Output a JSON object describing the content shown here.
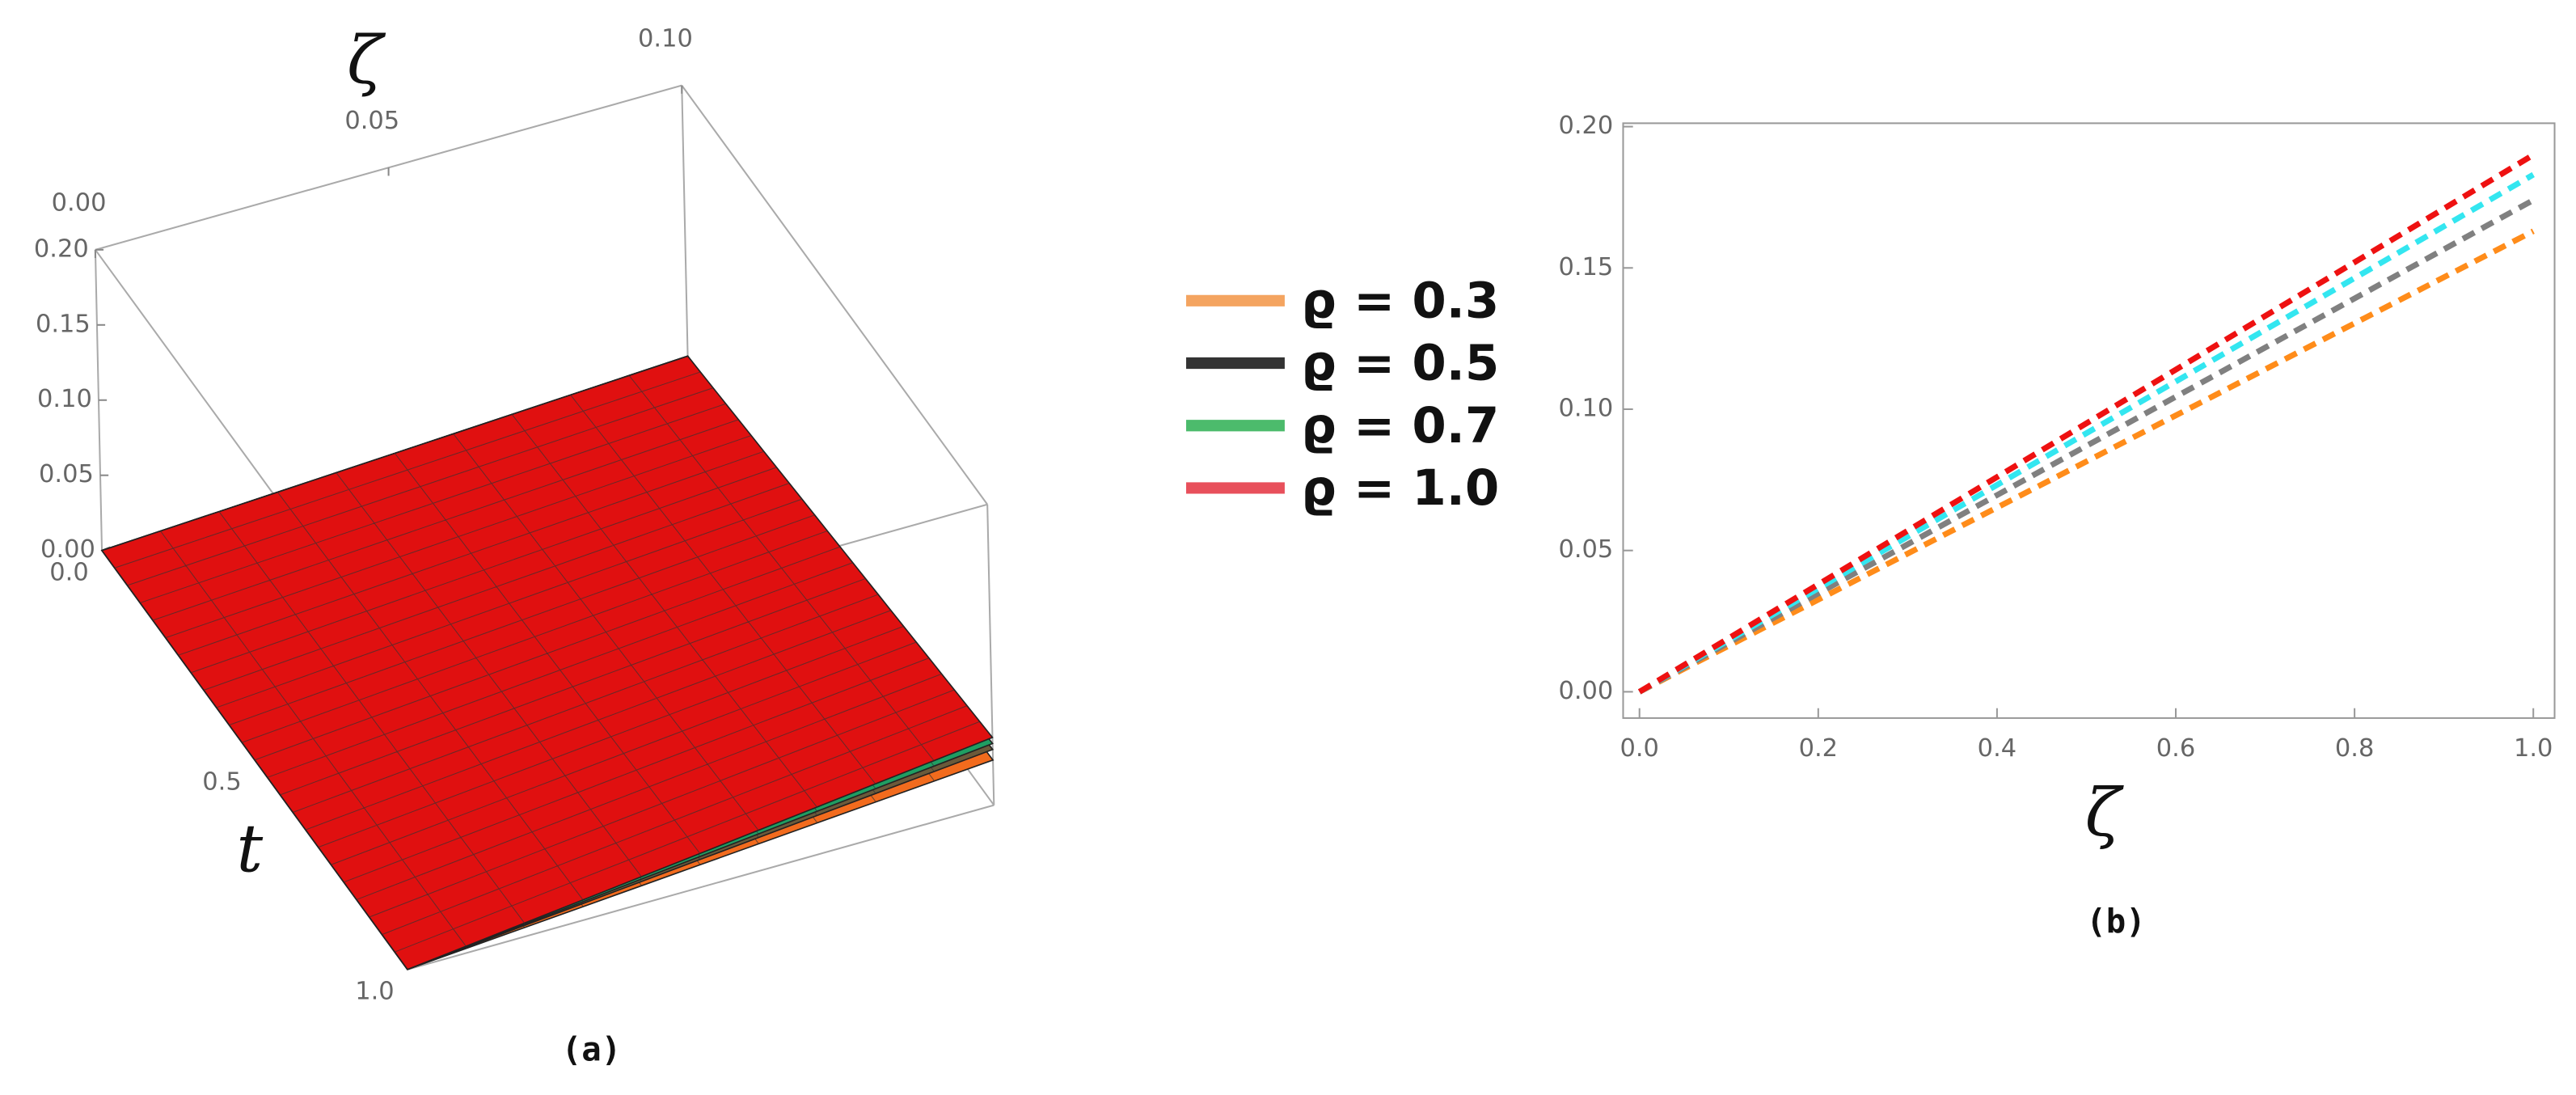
{
  "chart_data": [
    {
      "type": "surface3d",
      "caption": "(a)",
      "xlabel": "ζ",
      "ylabel": "t",
      "xlim": [
        0,
        0.1
      ],
      "ylim": [
        0,
        1
      ],
      "zlim": [
        0,
        0.2
      ],
      "xticks": [
        {
          "value": 0,
          "label": "0.00"
        },
        0.05,
        {
          "value": 0.1,
          "label": "0.10"
        }
      ],
      "yticks": [
        {
          "value": 0,
          "label": "0.0"
        },
        0.5,
        {
          "value": 1,
          "label": "1.0"
        }
      ],
      "zticks": [
        {
          "value": 0,
          "label": "0.00"
        },
        0.05,
        {
          "value": 0.1,
          "label": "0.10"
        },
        0.15,
        {
          "value": 0.2,
          "label": "0.20"
        }
      ],
      "x": [
        0,
        1
      ],
      "series": [
        {
          "name": "ϱ = 0.3",
          "color": "#f4a460",
          "surface_color": "#f26b1d",
          "values": [
            0.02,
            0.03
          ]
        },
        {
          "name": "ϱ = 0.5",
          "color": "#333333",
          "surface_color": "#6b5a3a",
          "values": [
            0.02,
            0.037
          ]
        },
        {
          "name": "ϱ = 0.7",
          "color": "#4cbb6c",
          "surface_color": "#1f9e62",
          "values": [
            0.02,
            0.041
          ]
        },
        {
          "name": "ϱ = 1.0",
          "color": "#e8505b",
          "surface_color": "#e01010",
          "values": [
            0.02,
            0.045
          ]
        }
      ]
    },
    {
      "type": "line",
      "caption": "(b)",
      "xlabel": "ζ",
      "xlim": [
        -0.0183,
        1.0238
      ],
      "ylim": [
        -0.0093,
        0.2012
      ],
      "xticks": [
        {
          "value": 0,
          "label": "0.0"
        },
        0.2,
        0.4,
        0.6,
        0.8,
        {
          "value": 1,
          "label": "1.0"
        }
      ],
      "yticks": [
        {
          "value": 0,
          "label": "0.00"
        },
        0.05,
        {
          "value": 0.1,
          "label": "0.10"
        },
        0.15,
        {
          "value": 0.2,
          "label": "0.20"
        }
      ],
      "x": [
        0,
        1
      ],
      "series": [
        {
          "color": "#ff8c1a",
          "values": [
            0,
            0.163
          ]
        },
        {
          "color": "#808080",
          "values": [
            0,
            0.174
          ]
        },
        {
          "color": "#33e6f0",
          "values": [
            0,
            0.183
          ]
        },
        {
          "color": "#ee1111",
          "values": [
            0,
            0.19
          ]
        }
      ]
    }
  ]
}
